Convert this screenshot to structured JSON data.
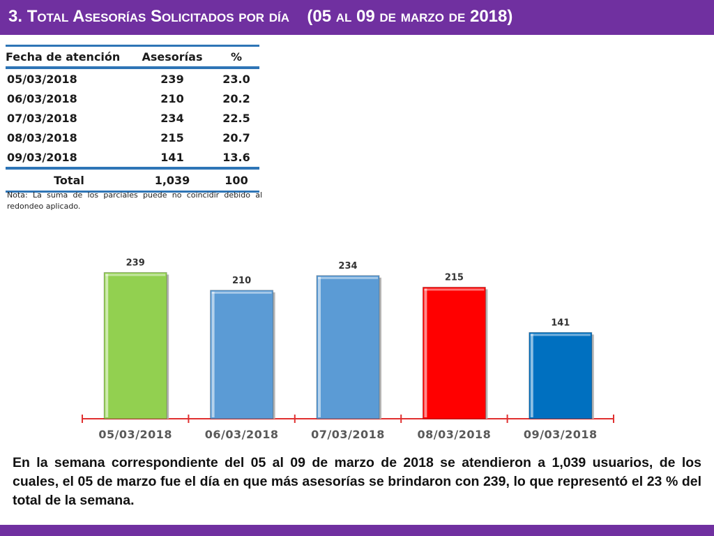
{
  "header": {
    "number": "3.",
    "title": "Total Asesorías Solicitados por día",
    "range": "(05 al 09 de marzo de 2018)"
  },
  "table": {
    "headers": [
      "Fecha de atención",
      "Asesorías",
      "%"
    ],
    "rows": [
      [
        "05/03/2018",
        "239",
        "23.0"
      ],
      [
        "06/03/2018",
        "210",
        "20.2"
      ],
      [
        "07/03/2018",
        "234",
        "22.5"
      ],
      [
        "08/03/2018",
        "215",
        "20.7"
      ],
      [
        "09/03/2018",
        "141",
        "13.6"
      ]
    ],
    "total": [
      "Total",
      "1,039",
      "100"
    ]
  },
  "note": "Nota: La suma de los parciales puede no coincidir debido al redondeo aplicado.",
  "chart_data": {
    "type": "bar",
    "categories": [
      "05/03/2018",
      "06/03/2018",
      "07/03/2018",
      "08/03/2018",
      "09/03/2018"
    ],
    "values": [
      239,
      210,
      234,
      215,
      141
    ],
    "bar_colors": [
      "#92d050",
      "#5b9bd5",
      "#5b9bd5",
      "#ff0000",
      "#0070c0"
    ],
    "axis_color": "#e03030",
    "ylim": [
      0,
      260
    ],
    "grid": false,
    "legend": "none"
  },
  "summary": "En la semana correspondiente del 05 al 09 de marzo de 2018 se atendieron a 1,039 usuarios, de los cuales, el 05 de marzo fue el día en que más asesorías se brindaron con 239, lo que representó el 23 % del total de la semana.",
  "colors": {
    "accent": "#7030a0",
    "table_rule": "#2e75b6"
  }
}
